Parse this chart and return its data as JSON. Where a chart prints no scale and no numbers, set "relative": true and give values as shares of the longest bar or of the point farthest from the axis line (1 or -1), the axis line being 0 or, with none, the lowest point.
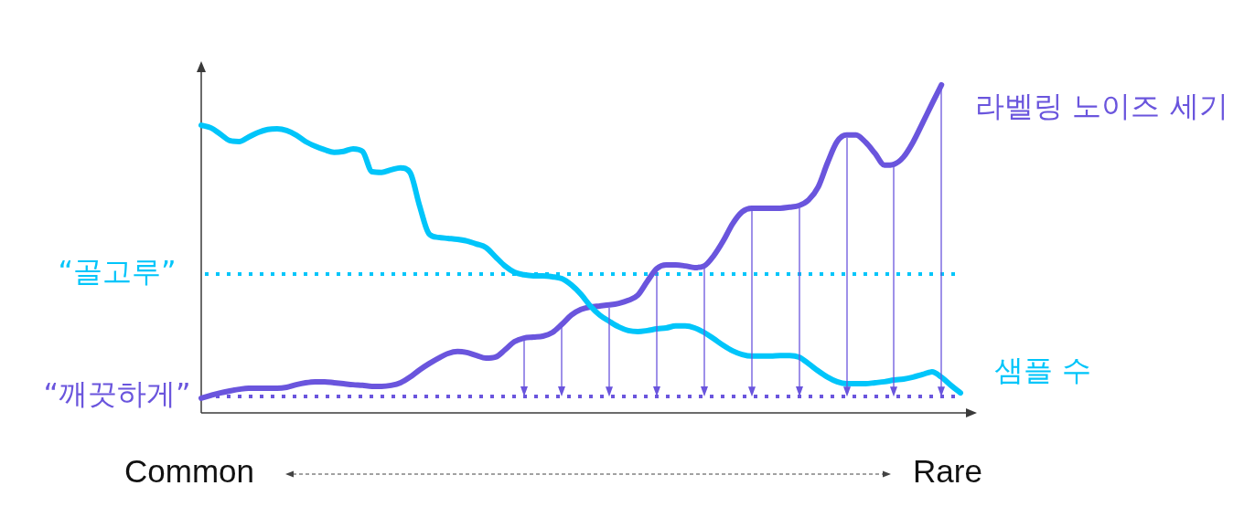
{
  "chart_data": {
    "type": "line",
    "relative": true,
    "marker": "none",
    "tick_labels": false,
    "categories": [
      null,
      null,
      null,
      null,
      null,
      null,
      null,
      null,
      null,
      null,
      null,
      null,
      null,
      null,
      null,
      null,
      null,
      null,
      null,
      null,
      null,
      null,
      null,
      null,
      null,
      null,
      null,
      null,
      null,
      null,
      null,
      null,
      null,
      null,
      null,
      null,
      null,
      null,
      null,
      null,
      null,
      null,
      null,
      null,
      null,
      null,
      null,
      null,
      null,
      null,
      null,
      null,
      null,
      null,
      null,
      null,
      null,
      null,
      null,
      null,
      null,
      null,
      null,
      null,
      null,
      null,
      null,
      null,
      null,
      null,
      null,
      null,
      null,
      null,
      null,
      null,
      null,
      null,
      null,
      null,
      null
    ],
    "series": [
      {
        "name": "샘플 수",
        "color": "#00c5fa",
        "values": [
          0.877,
          0.869,
          0.85,
          0.83,
          0.827,
          0.841,
          0.855,
          0.864,
          0.866,
          0.861,
          0.847,
          0.827,
          0.813,
          0.802,
          0.794,
          0.797,
          0.805,
          0.797,
          0.735,
          0.733,
          0.741,
          0.747,
          0.733,
          0.632,
          0.546,
          0.535,
          0.532,
          0.529,
          0.524,
          0.515,
          0.504,
          0.476,
          0.448,
          0.429,
          0.421,
          0.418,
          0.418,
          0.415,
          0.409,
          0.39,
          0.362,
          0.326,
          0.298,
          0.279,
          0.262,
          0.251,
          0.248,
          0.251,
          0.256,
          0.259,
          0.265,
          0.265,
          0.259,
          0.245,
          0.226,
          0.206,
          0.189,
          0.178,
          0.173,
          0.173,
          0.173,
          0.175,
          0.175,
          0.17,
          0.15,
          0.128,
          0.109,
          0.095,
          0.089,
          0.089,
          0.089,
          0.092,
          0.095,
          0.1,
          0.103,
          0.109,
          0.117,
          0.125,
          0.109,
          0.084,
          0.061
        ]
      },
      {
        "name": "라벨링 노이즈 세기",
        "color": "#6a55dd",
        "values": [
          0.045,
          0.053,
          0.061,
          0.067,
          0.072,
          0.075,
          0.075,
          0.075,
          0.075,
          0.078,
          0.086,
          0.092,
          0.095,
          0.095,
          0.092,
          0.089,
          0.086,
          0.084,
          0.081,
          0.081,
          0.084,
          0.092,
          0.109,
          0.131,
          0.15,
          0.167,
          0.181,
          0.187,
          0.184,
          0.175,
          0.167,
          0.17,
          0.192,
          0.217,
          0.228,
          0.231,
          0.234,
          0.245,
          0.27,
          0.298,
          0.315,
          0.323,
          0.326,
          0.329,
          0.334,
          0.343,
          0.359,
          0.401,
          0.44,
          0.451,
          0.451,
          0.448,
          0.443,
          0.448,
          0.479,
          0.524,
          0.577,
          0.613,
          0.624,
          0.624,
          0.624,
          0.624,
          0.627,
          0.632,
          0.649,
          0.688,
          0.763,
          0.827,
          0.847,
          0.847,
          0.825,
          0.791,
          0.755,
          0.758,
          0.78,
          0.825,
          0.883,
          0.942,
          1,
          null,
          null
        ]
      }
    ],
    "ref_lines": [
      {
        "axis": "y",
        "value": 0.423,
        "label": "“골고루”",
        "color": "#00c5fa",
        "line_style": "dotted"
      },
      {
        "axis": "y",
        "value": 0.05,
        "label": "“깨끗하게”",
        "color": "#6a55dd",
        "line_style": "dotted"
      }
    ],
    "annotations": [
      "Common",
      "Rare"
    ]
  }
}
